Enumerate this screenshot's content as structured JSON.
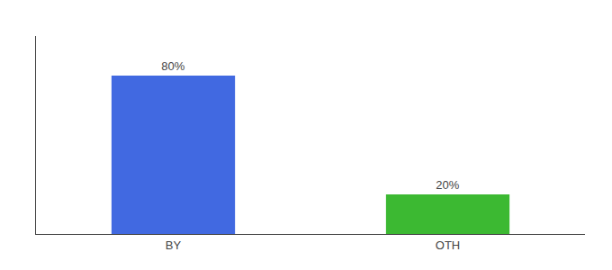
{
  "chart_data": {
    "type": "bar",
    "categories": [
      "BY",
      "OTH"
    ],
    "values": [
      80,
      20
    ],
    "value_labels": [
      "80%",
      "20%"
    ],
    "colors": [
      "#4169e1",
      "#3cb932"
    ],
    "ylim": [
      0,
      100
    ],
    "data_labels": true,
    "tick_labels": "x",
    "grid": false
  }
}
